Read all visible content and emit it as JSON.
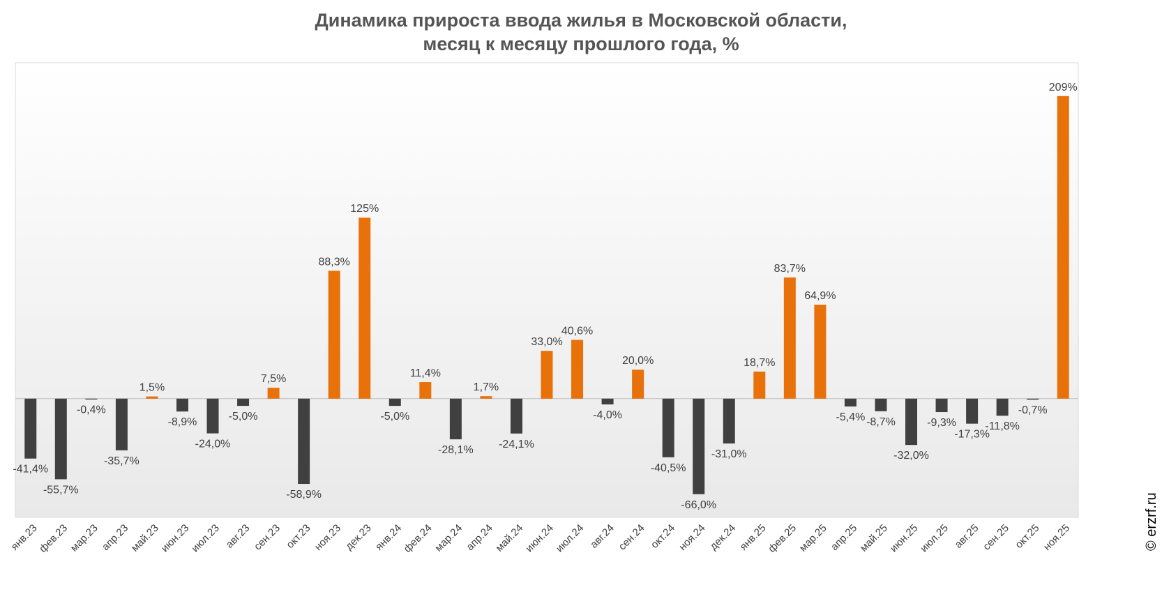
{
  "chart_data": {
    "type": "bar",
    "title": "Динамика прироста ввода жилья в Московской области,",
    "subtitle": "месяц к месяцу прошлого года, %",
    "xlabel": "",
    "ylabel": "",
    "ylim": [
      -82,
      232
    ],
    "grid": false,
    "categories": [
      "янв.23",
      "фев.23",
      "мар.23",
      "апр.23",
      "май.23",
      "июн.23",
      "июл.23",
      "авг.23",
      "сен.23",
      "окт.23",
      "ноя.23",
      "дек.23",
      "янв.24",
      "фев.24",
      "мар.24",
      "апр.24",
      "май.24",
      "июн.24",
      "июл.24",
      "авг.24",
      "сен.24",
      "окт.24",
      "ноя.24",
      "дек.24",
      "янв.25",
      "фев.25",
      "мар.25",
      "апр.25",
      "май.25",
      "июн.25",
      "июл.25",
      "авг.25",
      "сен.25",
      "окт.25",
      "ноя.25"
    ],
    "values": [
      -41.4,
      -55.7,
      -0.4,
      -35.7,
      1.5,
      -8.9,
      -24.0,
      -5.0,
      7.5,
      -58.9,
      88.3,
      125,
      -5.0,
      11.4,
      -28.1,
      1.7,
      -24.1,
      33.0,
      40.6,
      -4.0,
      20.0,
      -40.5,
      -66.0,
      -31.0,
      18.7,
      83.7,
      64.9,
      -5.4,
      -8.7,
      -32.0,
      -9.3,
      -17.3,
      -11.8,
      -0.7,
      209
    ],
    "labels": [
      "-41,4%",
      "-55,7%",
      "-0,4%",
      "-35,7%",
      "1,5%",
      "-8,9%",
      "-24,0%",
      "-5,0%",
      "7,5%",
      "-58,9%",
      "88,3%",
      "125%",
      "-5,0%",
      "11,4%",
      "-28,1%",
      "1,7%",
      "-24,1%",
      "33,0%",
      "40,6%",
      "-4,0%",
      "20,0%",
      "-40,5%",
      "-66,0%",
      "-31,0%",
      "18,7%",
      "83,7%",
      "64,9%",
      "-5,4%",
      "-8,7%",
      "-32,0%",
      "-9,3%",
      "-17,3%",
      "-11,8%",
      "-0,7%",
      "209%"
    ],
    "colors": {
      "positive": "#E8710A",
      "negative": "#404040",
      "text": "#404040",
      "axis": "#BFBFBF",
      "title": "#555555"
    }
  },
  "watermark": "© erzrf.ru"
}
